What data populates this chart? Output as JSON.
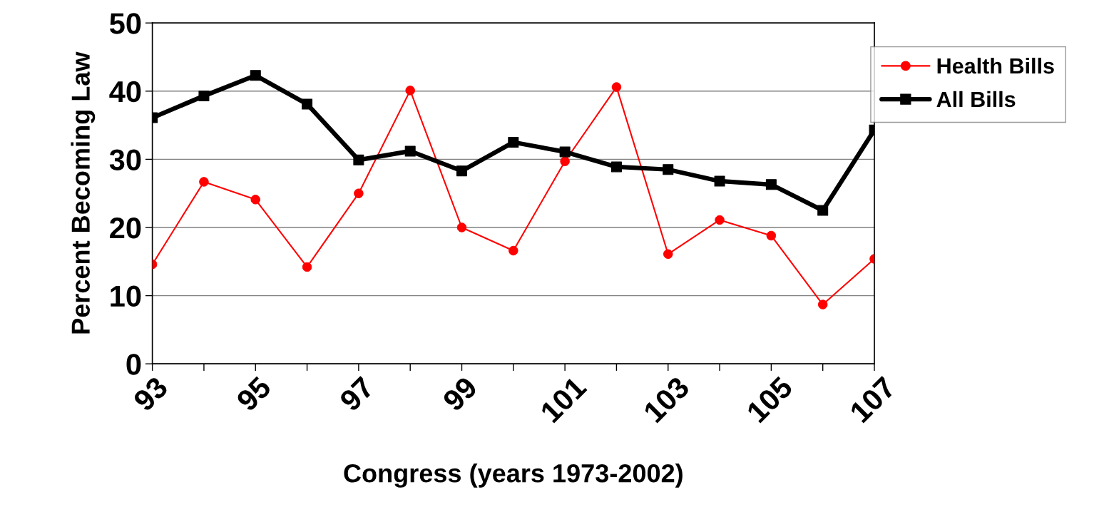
{
  "chart_data": {
    "type": "line",
    "xlabel": "Congress (years 1973-2002)",
    "ylabel": "Percent Becoming Law",
    "x": [
      93,
      94,
      95,
      96,
      97,
      98,
      99,
      100,
      101,
      102,
      103,
      104,
      105,
      106,
      107
    ],
    "series": [
      {
        "name": "Health Bills",
        "color": "#ff0000",
        "marker": "circle",
        "values": [
          14.6,
          26.7,
          24.1,
          14.2,
          25.0,
          40.1,
          20.0,
          16.6,
          29.7,
          40.6,
          16.1,
          21.1,
          18.8,
          8.7,
          15.4
        ]
      },
      {
        "name": "All Bills",
        "color": "#000000",
        "marker": "square",
        "values": [
          36.1,
          39.3,
          42.3,
          38.1,
          29.9,
          31.2,
          28.3,
          32.5,
          31.1,
          28.9,
          28.5,
          26.8,
          26.3,
          22.5,
          34.3
        ]
      }
    ],
    "xlim": [
      93,
      107
    ],
    "xticks": [
      93,
      {
        "value": 94,
        "label": null
      },
      95,
      {
        "value": 96,
        "label": null
      },
      97,
      {
        "value": 98,
        "label": null
      },
      99,
      {
        "value": 100,
        "label": null
      },
      101,
      {
        "value": 102,
        "label": null
      },
      103,
      {
        "value": 104,
        "label": null
      },
      105,
      {
        "value": 106,
        "label": null
      },
      107
    ],
    "ylim": [
      0,
      50
    ],
    "yticks": [
      0,
      10,
      20,
      30,
      40,
      50
    ],
    "grid": "y",
    "legend": "top right",
    "line_style": "solid"
  }
}
